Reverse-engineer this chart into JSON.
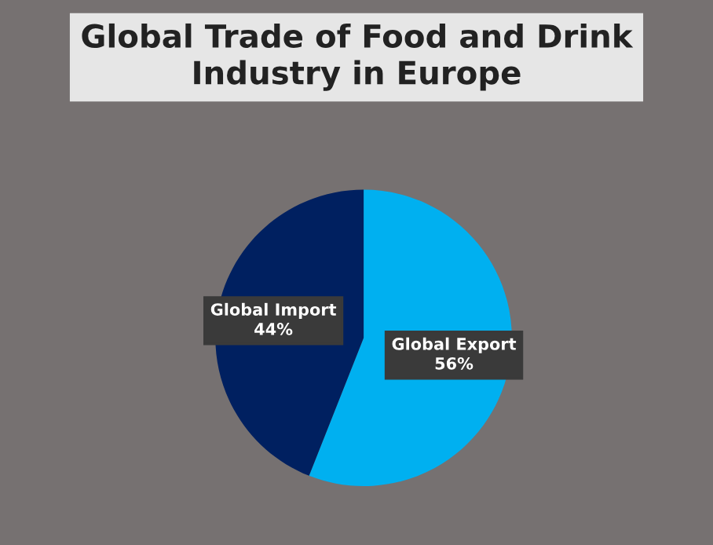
{
  "chart_data": {
    "type": "pie",
    "title": "Global Trade of Food and Drink Industry in Europe",
    "categories": [
      "Global Export",
      "Global Import"
    ],
    "values": [
      56,
      44
    ],
    "colors": [
      "#00b0f0",
      "#002060"
    ],
    "value_labels": [
      "56%",
      "44%"
    ],
    "legend": false
  }
}
